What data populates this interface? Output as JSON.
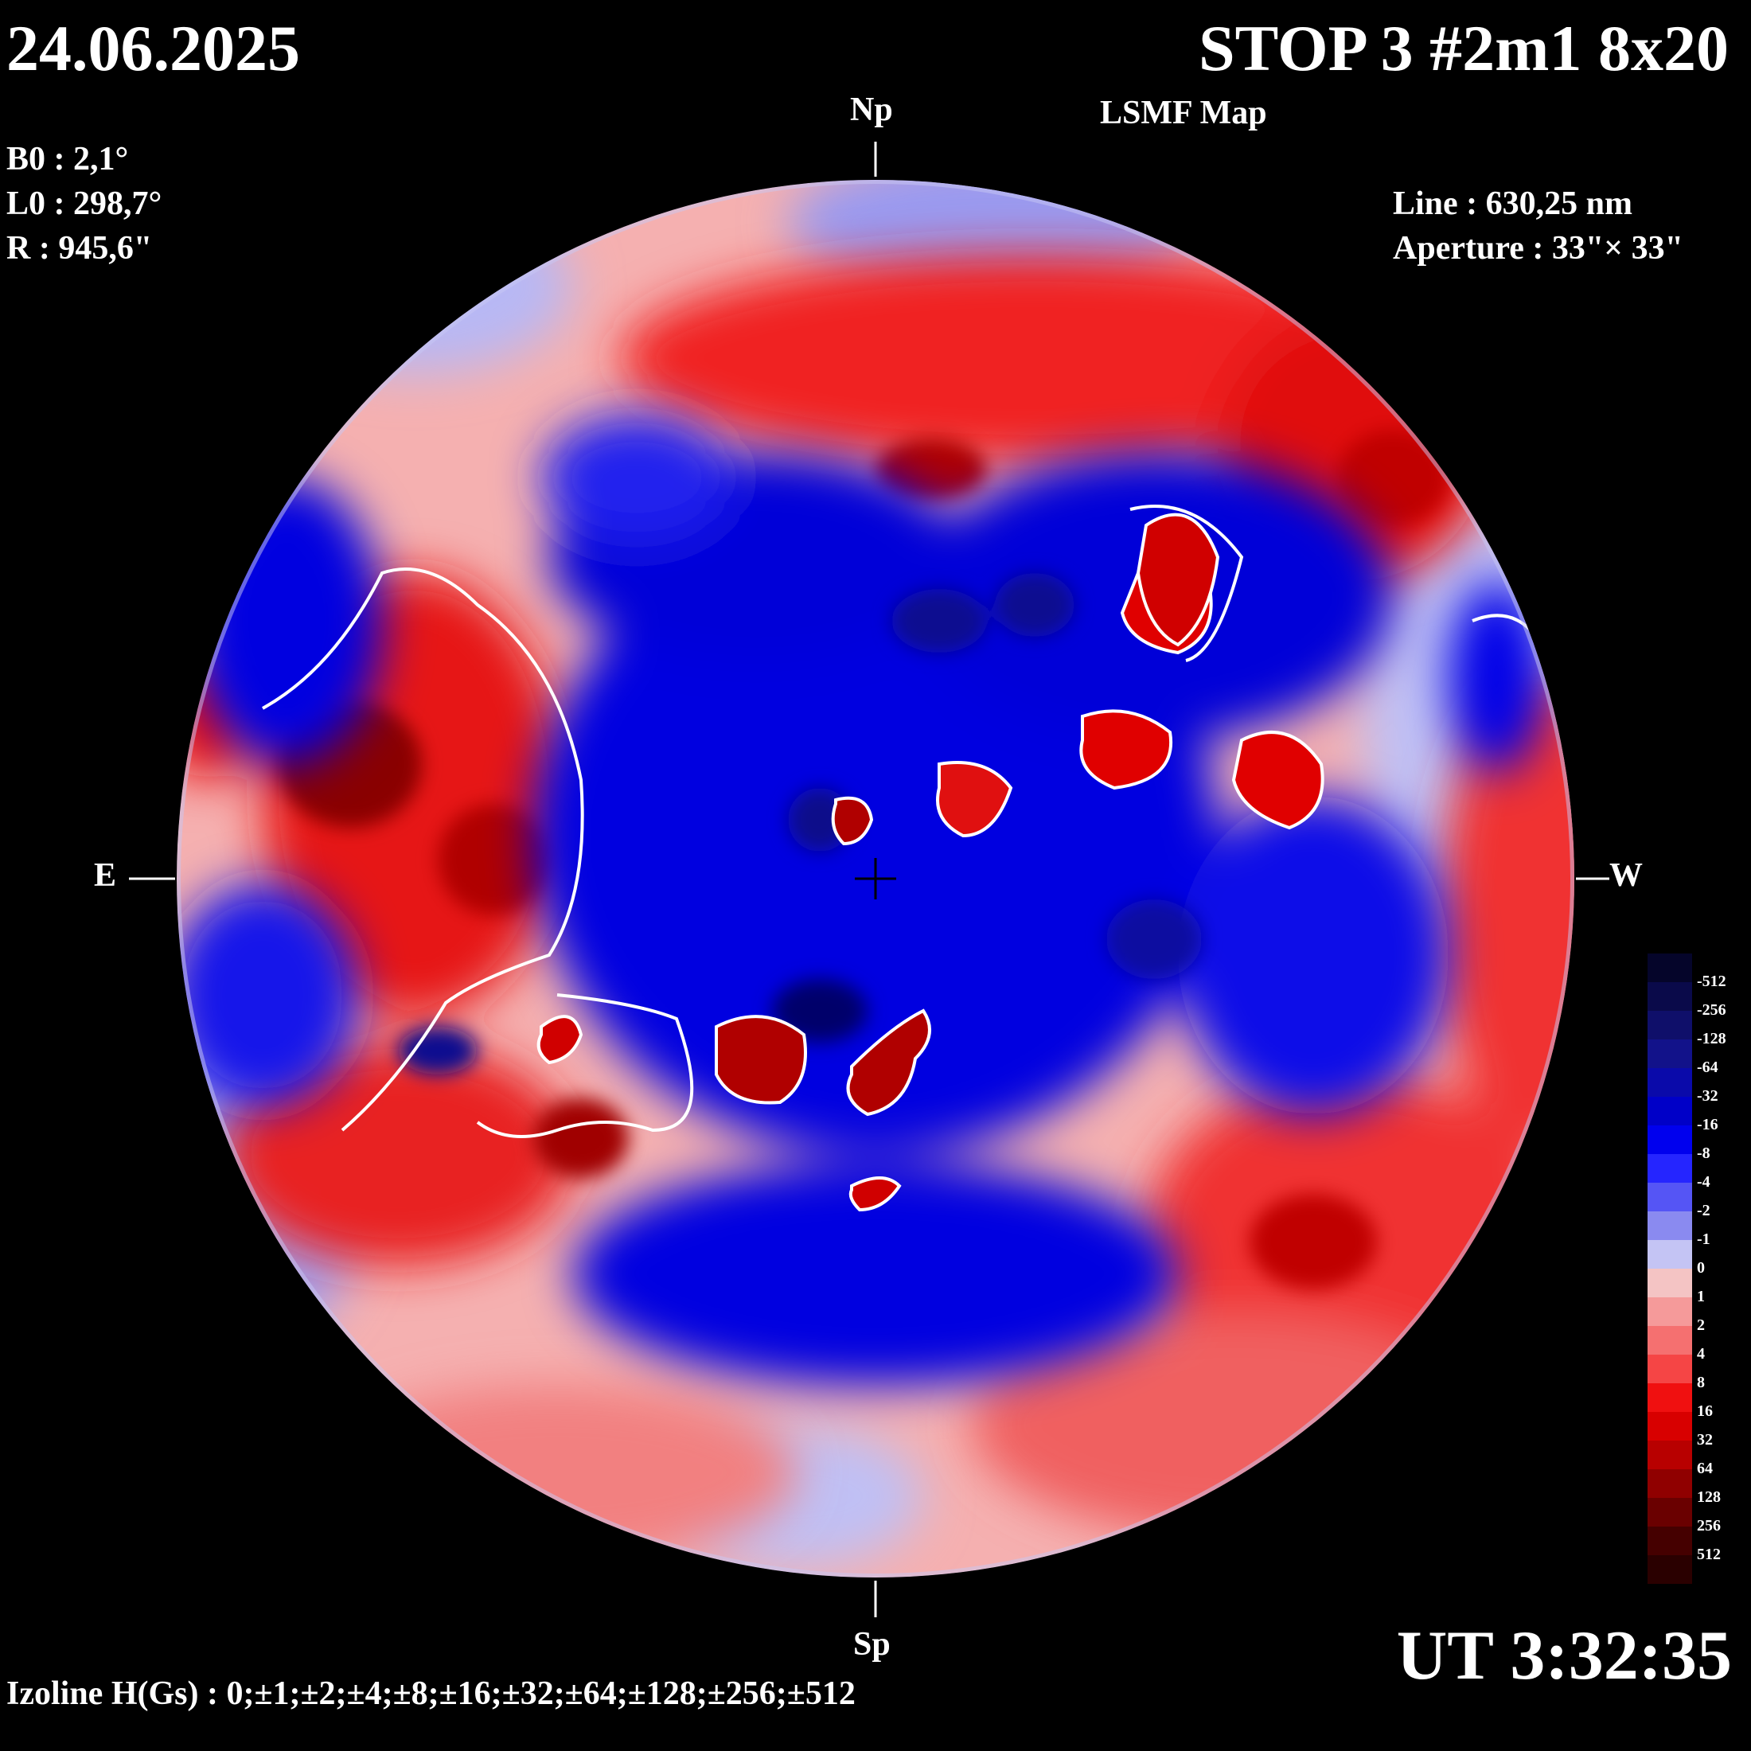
{
  "header": {
    "date": "24.06.2025",
    "title": "STOP 3 #2m1 8x20",
    "subtitle": "LSMF  Map"
  },
  "params": {
    "b0": "B0 : 2,1°",
    "l0": "L0 : 298,7°",
    "radius": "R  : 945,6\"",
    "line": "Line :  630,25 nm",
    "aperture": "Aperture : 33\"× 33\""
  },
  "orientation": {
    "north": "Np",
    "south": "Sp",
    "east": "E",
    "west": "W"
  },
  "footer": {
    "time": "UT 3:32:35",
    "izoline": "Izoline H(Gs) : 0;±1;±2;±4;±8;±16;±32;±64;±128;±256;±512"
  },
  "scale": {
    "labels": [
      "-512",
      "-256",
      "-128",
      "-64",
      "-32",
      "-16",
      "-8",
      "-4",
      "-2",
      "-1",
      "0",
      "1",
      "2",
      "4",
      "8",
      "16",
      "32",
      "64",
      "128",
      "256",
      "512"
    ],
    "colors": [
      "#05052a",
      "#0a0a4a",
      "#0f0f6a",
      "#12128a",
      "#0a0aaa",
      "#0000c8",
      "#0000ee",
      "#2525ff",
      "#5555f5",
      "#8a8af0",
      "#c4c4f4",
      "#f4c4c4",
      "#f59a9a",
      "#f57070",
      "#f54545",
      "#f01010",
      "#d80000",
      "#b80000",
      "#900000",
      "#6a0000",
      "#450000",
      "#2a0000"
    ],
    "negative_color": "#0000e0",
    "positive_color": "#e00000"
  },
  "map": {
    "field_regions": [
      {
        "polarity": "positive",
        "level": "strong",
        "label": "east-limb"
      },
      {
        "polarity": "positive",
        "level": "strong",
        "label": "north-belt"
      },
      {
        "polarity": "positive",
        "level": "strong",
        "label": "south-east"
      },
      {
        "polarity": "positive",
        "level": "strong",
        "label": "west-limb"
      },
      {
        "polarity": "negative",
        "level": "strong",
        "label": "central"
      },
      {
        "polarity": "negative",
        "level": "strong",
        "label": "north-east"
      }
    ]
  }
}
